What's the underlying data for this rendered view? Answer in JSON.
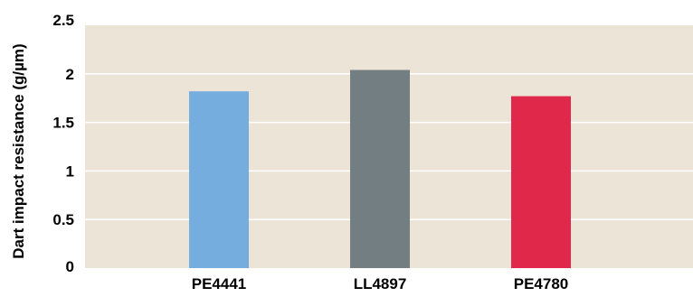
{
  "chart_data": {
    "type": "bar",
    "title": "",
    "xlabel": "",
    "ylabel": "Dart impact resistance (g/µm)",
    "categories": [
      "PE4441",
      "LL4897",
      "PE4780"
    ],
    "values": [
      1.82,
      2.04,
      1.77
    ],
    "bar_colors": [
      "#76addf",
      "#737e82",
      "#e0294a"
    ],
    "ylim": [
      0,
      2.5
    ],
    "yticks": [
      0,
      0.5,
      1,
      1.5,
      2,
      2.5
    ],
    "ytick_labels": [
      "0",
      "0.5",
      "1",
      "1.5",
      "2",
      "2.5"
    ],
    "grid": true,
    "legend": "none",
    "plot_background": "#ede4d8",
    "grid_color": "#ffffff"
  }
}
